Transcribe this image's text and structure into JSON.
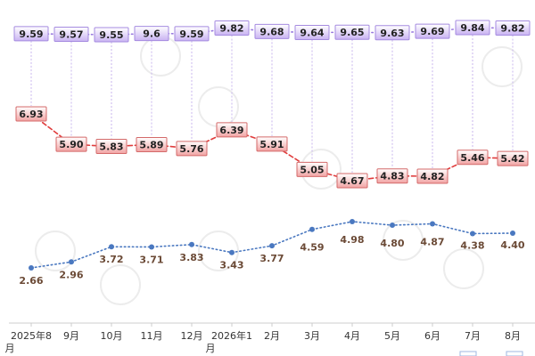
{
  "chart_data": {
    "type": "line",
    "categories": [
      "2025年8月",
      "9月",
      "10月",
      "11月",
      "12月",
      "2026年1月",
      "2月",
      "3月",
      "4月",
      "5月",
      "6月",
      "7月",
      "8月"
    ],
    "series": [
      {
        "values": [
          9.59,
          9.57,
          9.55,
          9.6,
          9.59,
          9.82,
          9.68,
          9.64,
          9.65,
          9.63,
          9.69,
          9.84,
          9.82
        ],
        "labels": [
          "9.59",
          "9.57",
          "9.55",
          "9.6",
          "9.59",
          "9.82",
          "9.68",
          "9.64",
          "9.65",
          "9.63",
          "9.69",
          "9.84",
          "9.82"
        ],
        "color": "#9a7ae0",
        "style": "dotted"
      },
      {
        "values": [
          6.93,
          5.9,
          5.83,
          5.89,
          5.76,
          6.39,
          5.91,
          5.05,
          4.67,
          4.83,
          4.82,
          5.46,
          5.42
        ],
        "labels": [
          "6.93",
          "5.90",
          "5.83",
          "5.89",
          "5.76",
          "6.39",
          "5.91",
          "5.05",
          "4.67",
          "4.83",
          "4.82",
          "5.46",
          "5.42"
        ],
        "color": "#e03c3c",
        "style": "dashed"
      },
      {
        "values": [
          2.66,
          2.96,
          3.72,
          3.71,
          3.83,
          3.43,
          3.77,
          4.59,
          4.98,
          4.8,
          4.87,
          4.38,
          4.4
        ],
        "labels": [
          "2.66",
          "2.96",
          "3.72",
          "3.71",
          "3.83",
          "3.43",
          "3.77",
          "4.59",
          "4.98",
          "4.80",
          "4.87",
          "4.38",
          "4.40"
        ],
        "color": "#4a78c0",
        "style": "dotted"
      }
    ],
    "title": "",
    "xlabel": "",
    "ylabel": "",
    "grid": false,
    "legend": "none"
  }
}
